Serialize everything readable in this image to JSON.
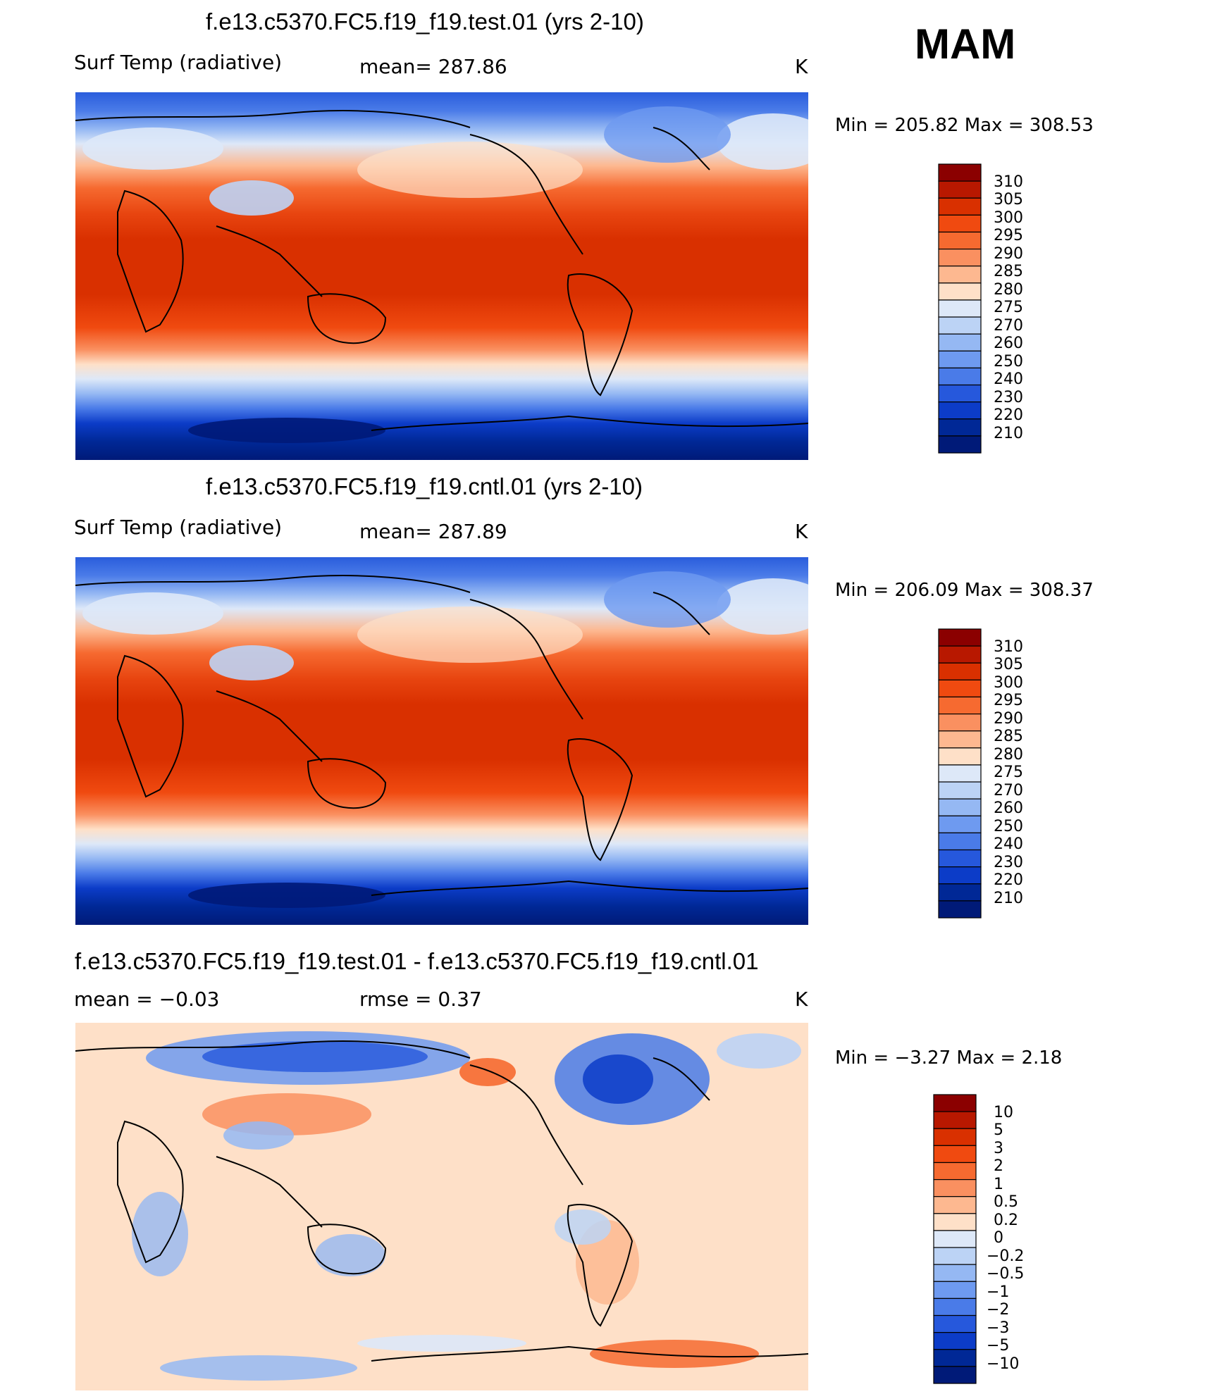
{
  "season": "MAM",
  "panels": [
    {
      "title": "f.e13.c5370.FC5.f19_f19.test.01 (yrs 2-10)",
      "left_label": "Surf Temp (radiative)",
      "center_label": "mean=  287.86",
      "units": "K",
      "minmax": "Min  =  205.82  Max  =  308.53"
    },
    {
      "title": "f.e13.c5370.FC5.f19_f19.cntl.01 (yrs 2-10)",
      "left_label": "Surf Temp (radiative)",
      "center_label": "mean=  287.89",
      "units": "K",
      "minmax": "Min  =  206.09  Max  =  308.37"
    },
    {
      "title": "f.e13.c5370.FC5.f19_f19.test.01 - f.e13.c5370.FC5.f19_f19.cntl.01",
      "left_label": "mean  =    −0.03",
      "center_label": "rmse  =      0.37",
      "units": "K",
      "minmax": "Min  =     −3.27  Max  =      2.18"
    }
  ],
  "chart_data": [
    {
      "type": "heatmap",
      "title": "f.e13.c5370.FC5.f19_f19.test.01 (yrs 2-10)",
      "variable": "Surf Temp (radiative)",
      "units": "K",
      "mean": 287.86,
      "min": 205.82,
      "max": 308.53,
      "colorbar_levels": [
        "310",
        "305",
        "300",
        "295",
        "290",
        "285",
        "280",
        "275",
        "270",
        "260",
        "250",
        "240",
        "230",
        "220",
        "210"
      ],
      "colorbar_colors": [
        "#8b0000",
        "#b81800",
        "#d93000",
        "#f04a10",
        "#f66a30",
        "#fa9060",
        "#fdb890",
        "#fee0c8",
        "#dde8f8",
        "#bcd3f5",
        "#95b8f3",
        "#6e9af0",
        "#4a7be8",
        "#2658dc",
        "#0c3cc8",
        "#002896",
        "#001a78"
      ]
    },
    {
      "type": "heatmap",
      "title": "f.e13.c5370.FC5.f19_f19.cntl.01 (yrs 2-10)",
      "variable": "Surf Temp (radiative)",
      "units": "K",
      "mean": 287.89,
      "min": 206.09,
      "max": 308.37,
      "colorbar_levels": [
        "310",
        "305",
        "300",
        "295",
        "290",
        "285",
        "280",
        "275",
        "270",
        "260",
        "250",
        "240",
        "230",
        "220",
        "210"
      ],
      "colorbar_colors": [
        "#8b0000",
        "#b81800",
        "#d93000",
        "#f04a10",
        "#f66a30",
        "#fa9060",
        "#fdb890",
        "#fee0c8",
        "#dde8f8",
        "#bcd3f5",
        "#95b8f3",
        "#6e9af0",
        "#4a7be8",
        "#2658dc",
        "#0c3cc8",
        "#002896",
        "#001a78"
      ]
    },
    {
      "type": "heatmap",
      "title": "f.e13.c5370.FC5.f19_f19.test.01 - f.e13.c5370.FC5.f19_f19.cntl.01",
      "variable": "difference",
      "units": "K",
      "mean": -0.03,
      "rmse": 0.37,
      "min": -3.27,
      "max": 2.18,
      "colorbar_levels": [
        "10",
        "5",
        "3",
        "2",
        "1",
        "0.5",
        "0.2",
        "0",
        "−0.2",
        "−0.5",
        "−1",
        "−2",
        "−3",
        "−5",
        "−10"
      ],
      "colorbar_colors": [
        "#8b0000",
        "#b81800",
        "#d93000",
        "#f04a10",
        "#f66a30",
        "#fa9060",
        "#fdb890",
        "#fee0c8",
        "#dde8f8",
        "#bcd3f5",
        "#95b8f3",
        "#6e9af0",
        "#4a7be8",
        "#2658dc",
        "#0c3cc8",
        "#002896",
        "#001a78"
      ]
    }
  ]
}
